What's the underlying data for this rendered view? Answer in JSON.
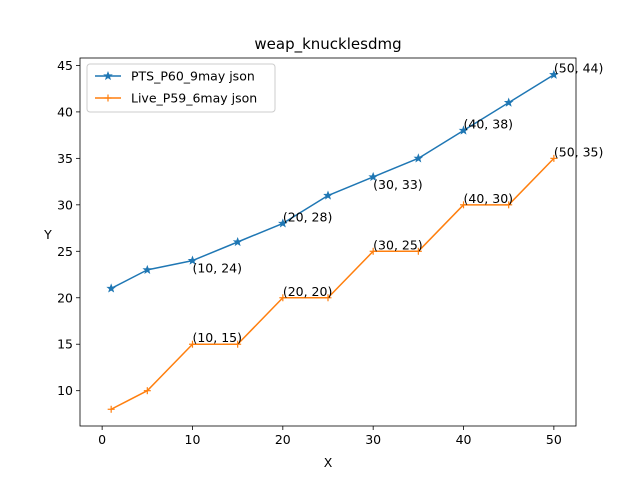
{
  "chart_data": {
    "type": "line",
    "title": "weap_knucklesdmg",
    "xlabel": "X",
    "ylabel": "Y",
    "xlim": [
      -2.45,
      52.45
    ],
    "ylim": [
      6.2,
      45.8
    ],
    "xticks": [
      0,
      10,
      20,
      30,
      40,
      50
    ],
    "yticks": [
      10,
      15,
      20,
      25,
      30,
      35,
      40,
      45
    ],
    "grid": false,
    "legend_position": "upper-left",
    "series": [
      {
        "name": "PTS_P60_9may json",
        "color": "#1f77b4",
        "marker": "star",
        "x": [
          1,
          5,
          10,
          15,
          20,
          25,
          30,
          35,
          40,
          45,
          50
        ],
        "y": [
          21,
          23,
          24,
          26,
          28,
          31,
          33,
          35,
          38,
          41,
          44
        ]
      },
      {
        "name": "Live_P59_6may json",
        "color": "#ff7f0e",
        "marker": "plus",
        "x": [
          1,
          5,
          10,
          15,
          20,
          25,
          30,
          35,
          40,
          45,
          50
        ],
        "y": [
          8,
          10,
          15,
          15,
          20,
          20,
          25,
          25,
          30,
          30,
          35
        ]
      }
    ],
    "annotations": [
      {
        "text": "(10, 24)",
        "x": 10,
        "y": 24,
        "valign": "below"
      },
      {
        "text": "(20, 28)",
        "x": 20,
        "y": 28,
        "valign": "above"
      },
      {
        "text": "(30, 33)",
        "x": 30,
        "y": 33,
        "valign": "below"
      },
      {
        "text": "(40, 38)",
        "x": 40,
        "y": 38,
        "valign": "above"
      },
      {
        "text": "(50, 44)",
        "x": 50,
        "y": 44,
        "valign": "above"
      },
      {
        "text": "(10, 15)",
        "x": 10,
        "y": 15,
        "valign": "above"
      },
      {
        "text": "(20, 20)",
        "x": 20,
        "y": 20,
        "valign": "above"
      },
      {
        "text": "(30, 25)",
        "x": 30,
        "y": 25,
        "valign": "above"
      },
      {
        "text": "(40, 30)",
        "x": 40,
        "y": 30,
        "valign": "above"
      },
      {
        "text": "(50, 35)",
        "x": 50,
        "y": 35,
        "valign": "above"
      }
    ]
  }
}
